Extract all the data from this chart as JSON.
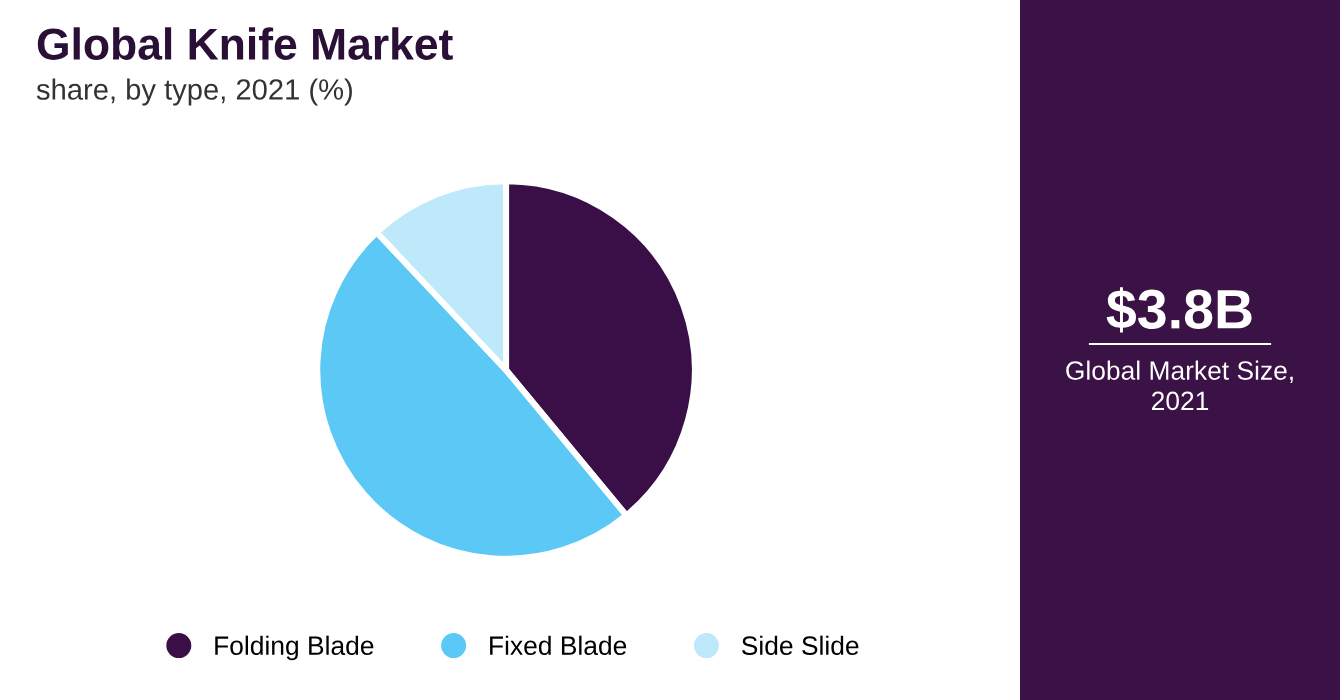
{
  "chart_data": {
    "type": "pie",
    "title": "Global Knife Market",
    "subtitle": "share, by type, 2021 (%)",
    "categories": [
      "Folding Blade",
      "Fixed Blade",
      "Side Slide"
    ],
    "values": [
      39,
      49,
      12
    ],
    "colors": [
      "#3a0f48",
      "#5bc8f5",
      "#bde9fa"
    ],
    "legend": "bottom",
    "annotations": [
      "$3.8B",
      "Global Market Size, 2021"
    ]
  }
}
